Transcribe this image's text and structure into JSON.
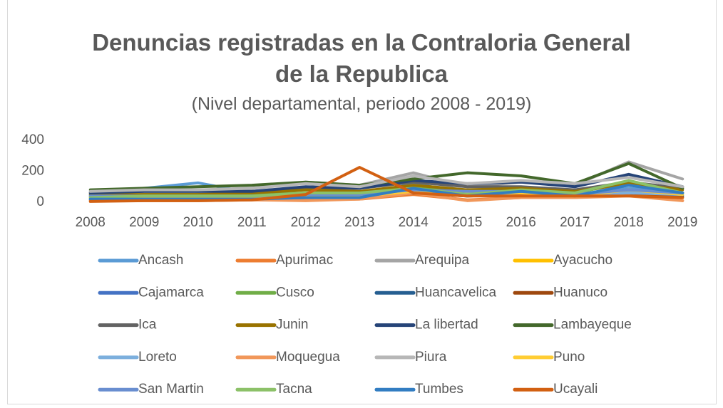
{
  "chart_data": {
    "type": "line",
    "title": "Denuncias registradas en la Contraloria General de la Republica",
    "subtitle": "(Nivel departamental, periodo 2008 - 2019)",
    "categories": [
      "2008",
      "2009",
      "2010",
      "2011",
      "2012",
      "2013",
      "2014",
      "2015",
      "2016",
      "2017",
      "2018",
      "2019"
    ],
    "ylim": [
      0,
      400
    ],
    "yticks": [
      0,
      200,
      400
    ],
    "grid": false,
    "legend": "bottom",
    "series": [
      {
        "name": "Ancash",
        "color": "#5b9bd5",
        "values": [
          50,
          90,
          125,
          60,
          50,
          40,
          120,
          60,
          70,
          50,
          90,
          60
        ]
      },
      {
        "name": "Apurimac",
        "color": "#ed7d31",
        "values": [
          10,
          15,
          15,
          20,
          15,
          20,
          50,
          15,
          30,
          30,
          60,
          10
        ]
      },
      {
        "name": "Arequipa",
        "color": "#a5a5a5",
        "values": [
          70,
          90,
          70,
          90,
          130,
          110,
          190,
          100,
          130,
          110,
          260,
          150
        ]
      },
      {
        "name": "Ayacucho",
        "color": "#ffc000",
        "values": [
          30,
          30,
          30,
          30,
          40,
          40,
          70,
          50,
          60,
          40,
          70,
          40
        ]
      },
      {
        "name": "Cajamarca",
        "color": "#4472c4",
        "values": [
          40,
          40,
          40,
          40,
          50,
          50,
          90,
          80,
          80,
          50,
          80,
          60
        ]
      },
      {
        "name": "Cusco",
        "color": "#70ad47",
        "values": [
          40,
          50,
          50,
          50,
          60,
          60,
          100,
          60,
          80,
          60,
          130,
          60
        ]
      },
      {
        "name": "Huancavelica",
        "color": "#255e91",
        "values": [
          20,
          20,
          20,
          20,
          30,
          30,
          60,
          40,
          50,
          40,
          50,
          40
        ]
      },
      {
        "name": "Huanuco",
        "color": "#9e480e",
        "values": [
          20,
          20,
          20,
          25,
          30,
          30,
          60,
          40,
          50,
          40,
          50,
          30
        ]
      },
      {
        "name": "Ica",
        "color": "#636363",
        "values": [
          60,
          70,
          70,
          70,
          90,
          90,
          130,
          100,
          100,
          80,
          130,
          90
        ]
      },
      {
        "name": "Junin",
        "color": "#997300",
        "values": [
          50,
          50,
          50,
          60,
          80,
          70,
          110,
          80,
          90,
          70,
          120,
          80
        ]
      },
      {
        "name": "La libertad",
        "color": "#264478",
        "values": [
          60,
          70,
          70,
          70,
          100,
          90,
          140,
          120,
          130,
          100,
          180,
          100
        ]
      },
      {
        "name": "Lambayeque",
        "color": "#43682b",
        "values": [
          80,
          90,
          100,
          110,
          130,
          110,
          150,
          190,
          170,
          120,
          250,
          90
        ]
      },
      {
        "name": "Loreto",
        "color": "#7cafdd",
        "values": [
          20,
          30,
          30,
          30,
          40,
          40,
          70,
          50,
          60,
          40,
          60,
          50
        ]
      },
      {
        "name": "Moquegua",
        "color": "#f1975a",
        "values": [
          10,
          10,
          10,
          15,
          10,
          20,
          60,
          10,
          30,
          30,
          40,
          10
        ]
      },
      {
        "name": "Piura",
        "color": "#b7b7b7",
        "values": [
          70,
          80,
          80,
          90,
          120,
          100,
          170,
          120,
          140,
          120,
          160,
          100
        ]
      },
      {
        "name": "Puno",
        "color": "#ffcd33",
        "values": [
          30,
          30,
          30,
          30,
          40,
          40,
          70,
          60,
          60,
          40,
          80,
          50
        ]
      },
      {
        "name": "San Martin",
        "color": "#698ed0",
        "values": [
          40,
          40,
          40,
          40,
          50,
          50,
          80,
          70,
          70,
          50,
          80,
          60
        ]
      },
      {
        "name": "Tacna",
        "color": "#8cc168",
        "values": [
          30,
          40,
          40,
          40,
          60,
          60,
          90,
          50,
          80,
          60,
          140,
          60
        ]
      },
      {
        "name": "Tumbes",
        "color": "#327dc2",
        "values": [
          20,
          20,
          20,
          20,
          30,
          30,
          90,
          40,
          70,
          40,
          110,
          60
        ]
      },
      {
        "name": "Ucayali",
        "color": "#d26012",
        "values": [
          5,
          10,
          10,
          15,
          50,
          225,
          60,
          40,
          40,
          40,
          40,
          30
        ]
      }
    ]
  }
}
